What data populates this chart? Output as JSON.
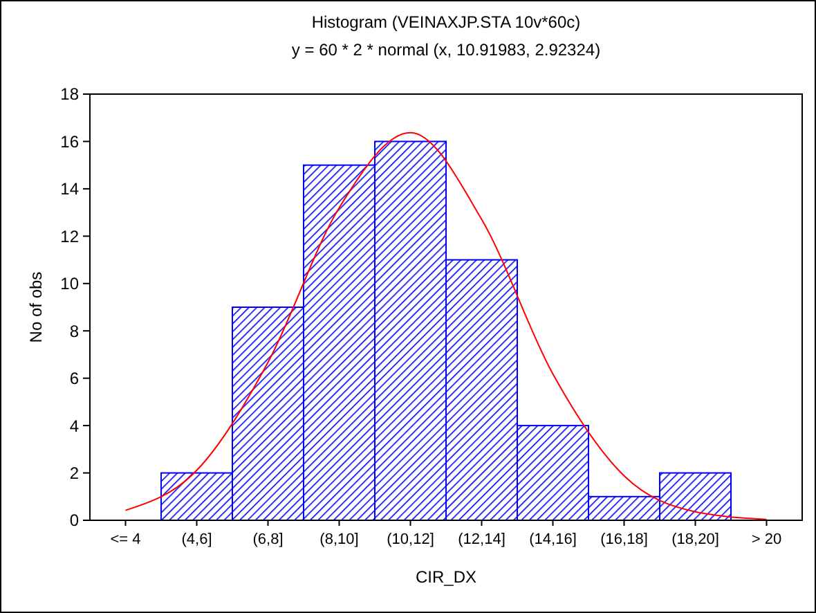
{
  "chart_data": {
    "type": "bar",
    "title": "Histogram (VEINAXJP.STA 10v*60c)",
    "subtitle": "y = 60 * 2 * normal (x, 10.91983, 2.92324)",
    "xlabel": "CIR_DX",
    "ylabel": "No of obs",
    "categories": [
      "<= 4",
      "(4,6]",
      "(6,8]",
      "(8,10]",
      "(10,12]",
      "(12,14]",
      "(14,16]",
      "(16,18]",
      "(18,20]",
      "> 20"
    ],
    "values": [
      0,
      2,
      9,
      15,
      16,
      11,
      4,
      1,
      2,
      0
    ],
    "color": "#0000ff",
    "ylim": [
      0,
      18
    ],
    "yticks": [
      0,
      2,
      4,
      6,
      8,
      10,
      12,
      14,
      16,
      18
    ],
    "series": [
      {
        "type": "line",
        "color": "#ff0000",
        "values": [
          0.42,
          2.11,
          6.67,
          13.2,
          16.37,
          12.71,
          6.18,
          1.88,
          0.36,
          0.04
        ]
      }
    ]
  }
}
